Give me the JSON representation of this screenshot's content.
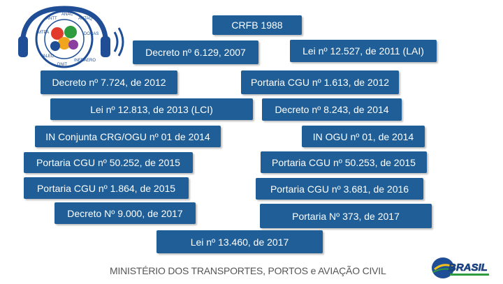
{
  "header_logo": {
    "icon": "cgu-accessibility-logo-icon",
    "ring_text": [
      "VALEC",
      "MTPA",
      "ANTT",
      "ANAC",
      "ANTAQ",
      "CIA DOCAS",
      "DNIT",
      "INFRAERO"
    ]
  },
  "items": {
    "crfb": "CRFB 1988",
    "decreto_6129": "Decreto nº 6.129, 2007",
    "lei_12527": "Lei nº 12.527, de 2011 (LAI)",
    "decreto_7724": "Decreto nº 7.724, de 2012",
    "portaria_1613": "Portaria CGU nº 1.613, de 2012",
    "lei_12813": "Lei nº 12.813, de 2013 (LCI)",
    "decreto_8243": "Decreto nº 8.243, de 2014",
    "in_conjunta": "IN Conjunta CRG/OGU nº 01 de 2014",
    "in_ogu": "IN OGU nº 01, de 2014",
    "portaria_50252": "Portaria CGU nº 50.252,  de 2015",
    "portaria_50253": "Portaria CGU nº 50.253, de 2015",
    "portaria_1864": "Portaria CGU nº 1.864, de 2015",
    "portaria_3681": "Portaria CGU nº 3.681, de 2016",
    "decreto_9000": "Decreto Nº 9.000,  de 2017",
    "portaria_373": "Portaria Nº 373, de 2017",
    "lei_13460": "Lei nº 13.460,  de 2017"
  },
  "footer": {
    "ministry": "MINISTÉRIO DOS TRANSPORTES, PORTOS e AVIAÇÃO CIVIL",
    "brasil_logo": "BRASIL",
    "brasil_logo_icon": "brasil-globe-logo-icon"
  },
  "colors": {
    "box_fill": "#1f5e97",
    "box_text": "#ffffff",
    "footer_text": "#555555"
  }
}
